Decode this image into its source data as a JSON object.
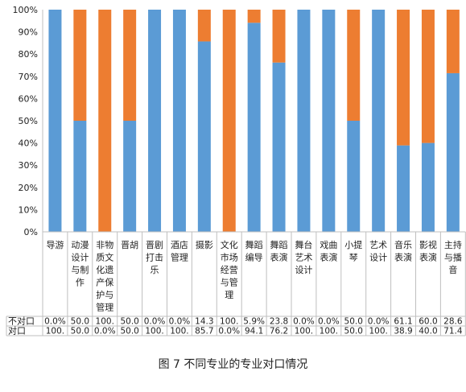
{
  "chart_data": {
    "type": "bar",
    "stacked": "percent",
    "categories": [
      [
        "导游"
      ],
      [
        "动漫",
        "设计",
        "与制",
        "作"
      ],
      [
        "非物",
        "质文",
        "化遗",
        "产保",
        "护与",
        "管理"
      ],
      [
        "晋胡"
      ],
      [
        "晋剧",
        "打击",
        "乐"
      ],
      [
        "酒店",
        "管理"
      ],
      [
        "摄影"
      ],
      [
        "文化",
        "市场",
        "经营",
        "与管",
        "理"
      ],
      [
        "舞蹈",
        "编导"
      ],
      [
        "舞蹈",
        "表演"
      ],
      [
        "舞台",
        "艺术",
        "设计"
      ],
      [
        "戏曲",
        "表演"
      ],
      [
        "小提",
        "琴"
      ],
      [
        "艺术",
        "设计"
      ],
      [
        "音乐",
        "表演"
      ],
      [
        "影视",
        "表演"
      ],
      [
        "主持",
        "与播",
        "音"
      ]
    ],
    "series": [
      {
        "name": "对口",
        "color": "#5b9bd5",
        "values": [
          100,
          50,
          0,
          50,
          100,
          100,
          85.7,
          0,
          94.1,
          76.2,
          100,
          100,
          50,
          100,
          38.9,
          40,
          71.4
        ],
        "labels": [
          "100.",
          "50.0",
          "0.0%",
          "50.0",
          "100.",
          "100.",
          "85.7",
          "0.0%",
          "94.1",
          "76.2",
          "100.",
          "100.",
          "50.0",
          "100.",
          "38.9",
          "40.0",
          "71.4"
        ]
      },
      {
        "name": "不对口",
        "color": "#ed7d31",
        "values": [
          0,
          50,
          100,
          50,
          0,
          0,
          14.3,
          100,
          5.9,
          23.8,
          0,
          0,
          50,
          0,
          61.1,
          60,
          28.6
        ],
        "labels": [
          "0.0%",
          "50.0",
          "100.",
          "50.0",
          "0.0%",
          "0.0%",
          "14.3",
          "100.",
          "5.9%",
          "23.8",
          "0.0%",
          "0.0%",
          "50.0",
          "0.0%",
          "61.1",
          "60.0",
          "28.6"
        ]
      }
    ],
    "yticks": [
      "0%",
      "10%",
      "20%",
      "30%",
      "40%",
      "50%",
      "60%",
      "70%",
      "80%",
      "90%",
      "100%"
    ],
    "ylim": [
      0,
      100
    ],
    "grid": false,
    "legend": "data table rows below the chart"
  },
  "caption": "图 7  不同专业的专业对口情况"
}
